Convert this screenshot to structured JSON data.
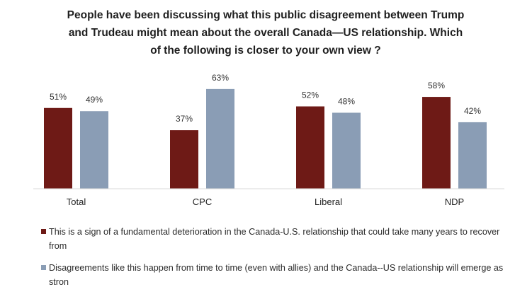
{
  "chart_data": {
    "type": "bar",
    "title_lines": [
      "People have been discussing what this public disagreement between Trump",
      "and Trudeau might mean about the overall Canada—US relationship. Which",
      "of the following is closer to your own view ?"
    ],
    "categories": [
      "Total",
      "CPC",
      "Liberal",
      "NDP"
    ],
    "series": [
      {
        "name": "This is a sign of a fundamental deterioration in the Canada-U.S. relationship that could take many years to recover from",
        "values": [
          51,
          37,
          52,
          58
        ],
        "labels": [
          "51%",
          "37%",
          "52%",
          "58%"
        ],
        "color": "#6e1a16"
      },
      {
        "name": "Disagreements like this happen from time to time (even with allies) and the Canada--US relationship will emerge as stron",
        "values": [
          49,
          63,
          48,
          42
        ],
        "labels": [
          "49%",
          "63%",
          "48%",
          "42%"
        ],
        "color": "#8a9db5"
      }
    ],
    "ylim": [
      0,
      100
    ],
    "xlabel": "",
    "ylabel": "",
    "grid": false,
    "legend_position": "bottom"
  }
}
